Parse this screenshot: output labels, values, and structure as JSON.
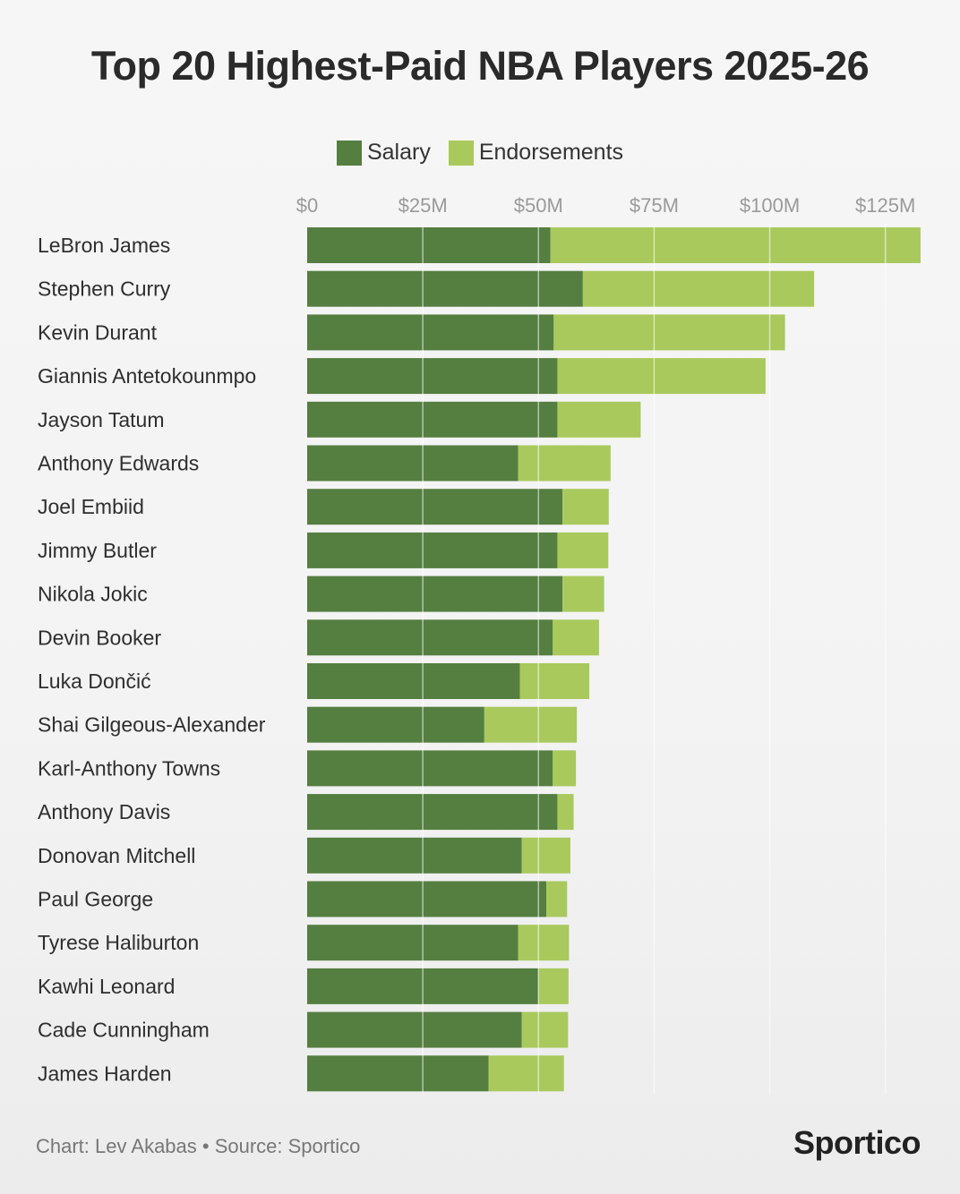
{
  "title": "Top 20 Highest-Paid NBA Players 2025-26",
  "legend": {
    "salary_label": "Salary",
    "endorsements_label": "Endorsements"
  },
  "colors": {
    "salary": "#557e41",
    "endorsements": "#a9c95d",
    "gridline": "#ffffff",
    "tick_text": "#9a9a9a",
    "label_text": "#2e2e2e"
  },
  "footer": {
    "credit": "Chart: Lev Akabas • Source: Sportico",
    "brand": "Sportico"
  },
  "chart_data": {
    "type": "bar",
    "orientation": "horizontal",
    "stacked": true,
    "title": "Top 20 Highest-Paid NBA Players 2025-26",
    "xlabel": "",
    "ylabel": "",
    "xlim": [
      0,
      133
    ],
    "grid": true,
    "legend_position": "top-center",
    "x_ticks": [
      0,
      25,
      50,
      75,
      100,
      125
    ],
    "x_tick_labels": [
      "$0",
      "$25M",
      "$50M",
      "$75M",
      "$100M",
      "$125M"
    ],
    "categories": [
      "LeBron James",
      "Stephen Curry",
      "Kevin Durant",
      "Giannis Antetokounmpo",
      "Jayson Tatum",
      "Anthony Edwards",
      "Joel Embiid",
      "Jimmy Butler",
      "Nikola Jokic",
      "Devin Booker",
      "Luka Dončić",
      "Shai Gilgeous-Alexander",
      "Karl-Anthony Towns",
      "Anthony Davis",
      "Donovan Mitchell",
      "Paul George",
      "Tyrese Haliburton",
      "Kawhi Leonard",
      "Cade Cunningham",
      "James Harden"
    ],
    "series": [
      {
        "name": "Salary",
        "values": [
          52.6,
          59.6,
          53.3,
          54.1,
          54.1,
          45.6,
          55.2,
          54.1,
          55.2,
          53.1,
          46.0,
          38.3,
          53.1,
          54.1,
          46.4,
          51.7,
          45.6,
          50.0,
          46.4,
          39.2
        ]
      },
      {
        "name": "Endorsements",
        "values": [
          80.0,
          50.0,
          50.0,
          45.0,
          18.0,
          20.0,
          10.0,
          11.0,
          9.0,
          10.0,
          15.0,
          20.0,
          5.0,
          3.5,
          10.5,
          4.5,
          11.0,
          6.5,
          10.0,
          16.3
        ]
      }
    ]
  }
}
